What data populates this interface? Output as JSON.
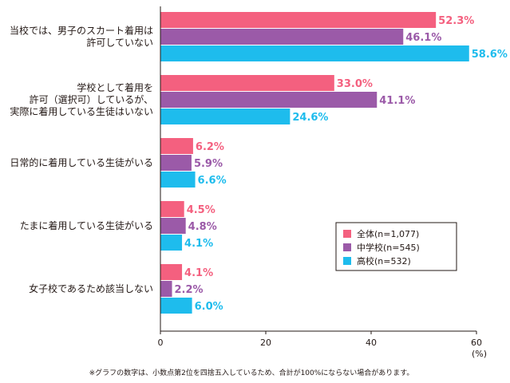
{
  "chart_data": {
    "type": "bar",
    "orientation": "horizontal",
    "categories": [
      [
        "当校では、男子のスカート着用は",
        "許可していない"
      ],
      [
        "学校として着用を",
        "許可（選択可）しているが、",
        "実際に着用している生徒はいない"
      ],
      [
        "日常的に着用している生徒がいる"
      ],
      [
        "たまに着用している生徒がいる"
      ],
      [
        "女子校であるため該当しない"
      ]
    ],
    "series": [
      {
        "name": "全体(n=1,077)",
        "color": "#f4607f",
        "values": [
          52.3,
          33.0,
          6.2,
          4.5,
          4.1
        ]
      },
      {
        "name": "中学校(n=545)",
        "color": "#9b5aa8",
        "values": [
          46.1,
          41.1,
          5.9,
          4.8,
          2.2
        ]
      },
      {
        "name": "高校(n=532)",
        "color": "#1ebced",
        "values": [
          58.6,
          24.6,
          6.6,
          4.1,
          6.0
        ]
      }
    ],
    "xlim": [
      0,
      60
    ],
    "xticks": [
      "0",
      "20",
      "40",
      "60"
    ],
    "unit": "(%)",
    "value_suffix": "%",
    "grid": false,
    "legend_position": "bottom-right",
    "footnote": "※グラフの数字は、小数点第2位を四捨五入しているため、合計が100%にならない場合があります。"
  }
}
